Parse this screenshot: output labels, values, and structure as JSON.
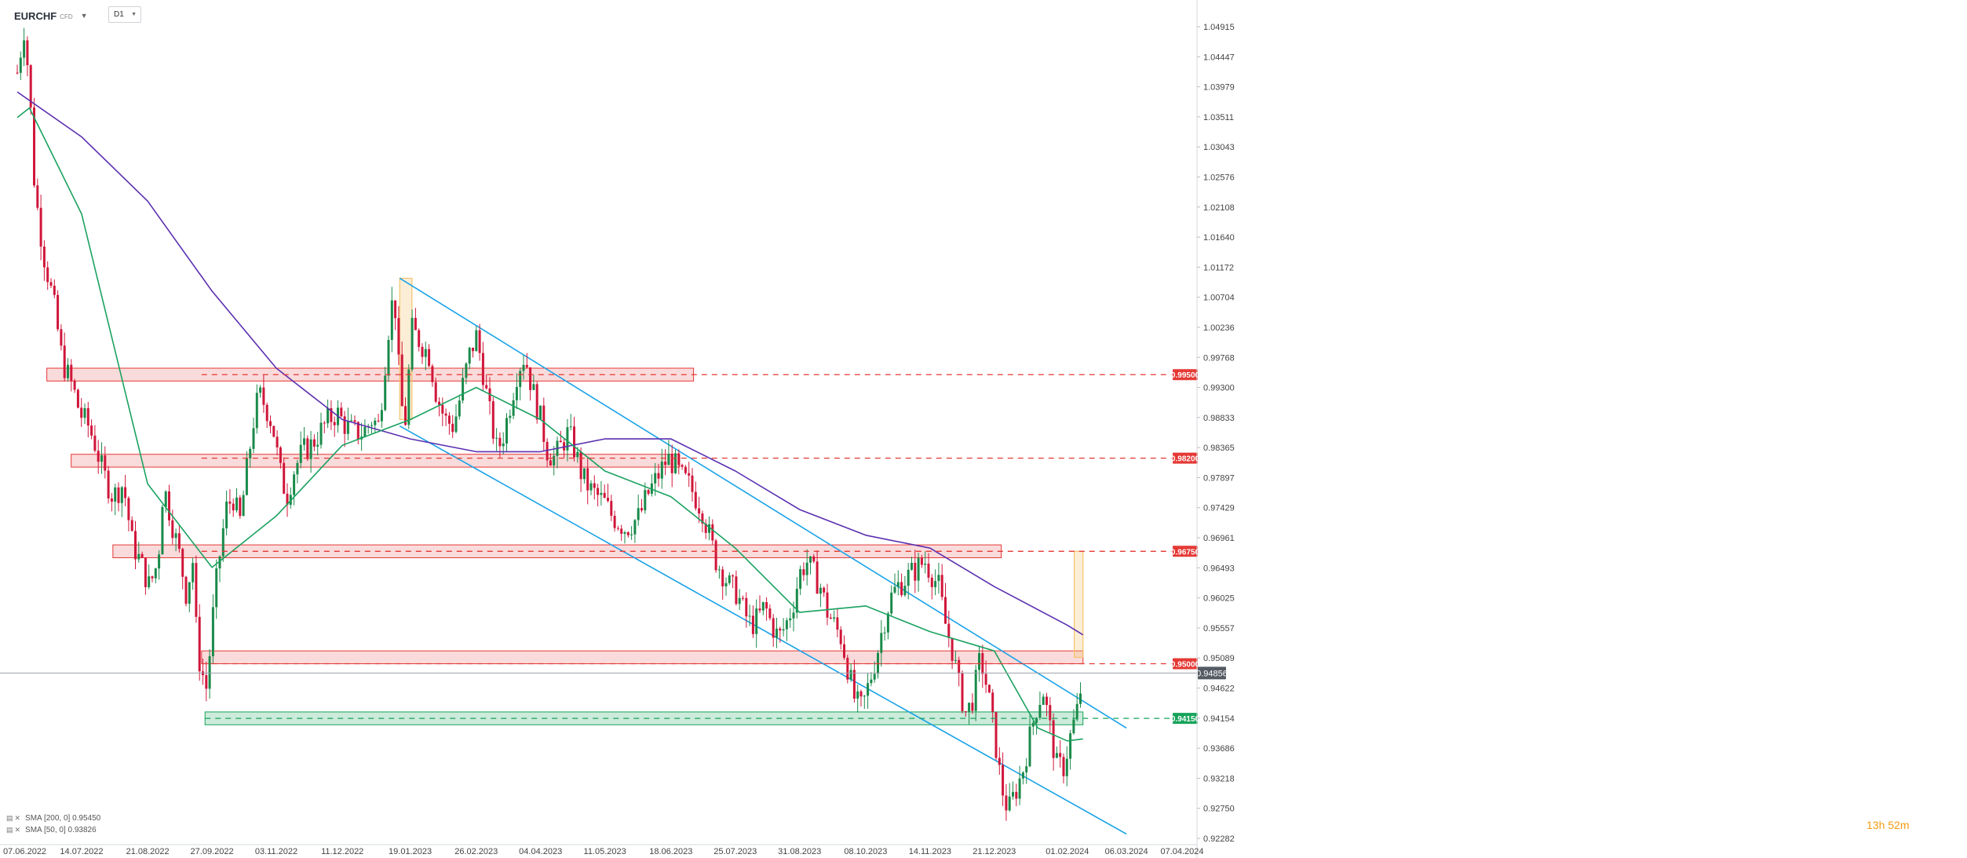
{
  "header": {
    "symbol": "EURCHF",
    "instrument_type": "CFD",
    "timeframe": "D1"
  },
  "legend": [
    {
      "label": "SMA [200, 0] 0.95450",
      "color": "#5b2fb0"
    },
    {
      "label": "SMA [50, 0] 0.93826",
      "color": "#1aa260"
    }
  ],
  "countdown": "13h 52m",
  "colors": {
    "bull": "#1a8a4a",
    "bear": "#d0163a",
    "sma200": "#5b2fb0",
    "sma50": "#1aa260",
    "channel": "#1aa3e8",
    "resistance": "#e53935",
    "support": "#16a35a",
    "highlight": "#f5c26b"
  },
  "chart_data": {
    "type": "candlestick",
    "y_axis": {
      "ticks": [
        "1.04915",
        "1.04447",
        "1.03979",
        "1.03511",
        "1.03043",
        "1.02576",
        "1.02108",
        "1.01640",
        "1.01172",
        "1.00704",
        "1.00236",
        "0.99768",
        "0.99300",
        "0.98833",
        "0.98365",
        "0.97897",
        "0.97429",
        "0.96961",
        "0.96493",
        "0.96025",
        "0.95557",
        "0.95089",
        "0.94622",
        "0.94154",
        "0.93686",
        "0.93218",
        "0.92750",
        "0.92282"
      ],
      "range": [
        0.922,
        1.0531
      ]
    },
    "x_axis": {
      "ticks": [
        "07.06.2022",
        "14.07.2022",
        "21.08.2022",
        "27.09.2022",
        "03.11.2022",
        "11.12.2022",
        "19.01.2023",
        "26.02.2023",
        "04.04.2023",
        "11.05.2023",
        "18.06.2023",
        "25.07.2023",
        "31.08.2023",
        "08.10.2023",
        "14.11.2023",
        "21.12.2023",
        "01.02.2024",
        "06.03.2024",
        "07.04.2024"
      ]
    },
    "current_price": "0.94856",
    "current_price_value": 0.94856,
    "levels": [
      {
        "label": "0.99500",
        "value": 0.995,
        "type": "resistance"
      },
      {
        "label": "0.98200",
        "value": 0.982,
        "type": "resistance"
      },
      {
        "label": "0.96750",
        "value": 0.9675,
        "type": "resistance"
      },
      {
        "label": "0.95000",
        "value": 0.95,
        "type": "resistance"
      },
      {
        "label": "0.94150",
        "value": 0.9415,
        "type": "support"
      }
    ],
    "price_path": [
      [
        "07.06.2022",
        1.042
      ],
      [
        "11.06.2022",
        1.049
      ],
      [
        "14.06.2022",
        1.04
      ],
      [
        "17.06.2022",
        1.024
      ],
      [
        "22.06.2022",
        1.014
      ],
      [
        "28.06.2022",
        1.006
      ],
      [
        "03.07.2022",
        0.997
      ],
      [
        "09.07.2022",
        0.993
      ],
      [
        "13.07.2022",
        0.989
      ],
      [
        "18.07.2022",
        0.987
      ],
      [
        "22.07.2022",
        0.984
      ],
      [
        "26.07.2022",
        0.98
      ],
      [
        "01.08.2022",
        0.976
      ],
      [
        "07.08.2022",
        0.978
      ],
      [
        "12.08.2022",
        0.969
      ],
      [
        "18.08.2022",
        0.965
      ],
      [
        "22.08.2022",
        0.962
      ],
      [
        "27.08.2022",
        0.966
      ],
      [
        "30.08.2022",
        0.978
      ],
      [
        "04.09.2022",
        0.972
      ],
      [
        "09.09.2022",
        0.966
      ],
      [
        "12.09.2022",
        0.961
      ],
      [
        "16.09.2022",
        0.966
      ],
      [
        "18.09.2022",
        0.955
      ],
      [
        "20.09.2022",
        0.95
      ],
      [
        "24.09.2022",
        0.946
      ],
      [
        "27.09.2022",
        0.956
      ],
      [
        "30.09.2022",
        0.964
      ],
      [
        "05.10.2022",
        0.974
      ],
      [
        "09.10.2022",
        0.976
      ],
      [
        "13.10.2022",
        0.972
      ],
      [
        "17.10.2022",
        0.98
      ],
      [
        "21.10.2022",
        0.988
      ],
      [
        "24.10.2022",
        0.992
      ],
      [
        "28.10.2022",
        0.99
      ],
      [
        "01.11.2022",
        0.987
      ],
      [
        "05.11.2022",
        0.98
      ],
      [
        "09.11.2022",
        0.976
      ],
      [
        "13.11.2022",
        0.98
      ],
      [
        "18.11.2022",
        0.983
      ],
      [
        "23.11.2022",
        0.984
      ],
      [
        "28.11.2022",
        0.986
      ],
      [
        "03.12.2022",
        0.988
      ],
      [
        "08.12.2022",
        0.989
      ],
      [
        "13.12.2022",
        0.987
      ],
      [
        "18.12.2022",
        0.986
      ],
      [
        "23.12.2022",
        0.986
      ],
      [
        "28.12.2022",
        0.988
      ],
      [
        "01.01.2023",
        0.987
      ],
      [
        "05.01.2023",
        0.998
      ],
      [
        "08.01.2023",
        1.006
      ],
      [
        "11.01.2023",
        1.005
      ],
      [
        "13.01.2023",
        0.992
      ],
      [
        "16.01.2023",
        0.987
      ],
      [
        "20.01.2023",
        1.002
      ],
      [
        "25.01.2023",
        1.0
      ],
      [
        "30.01.2023",
        0.998
      ],
      [
        "03.02.2023",
        0.992
      ],
      [
        "08.02.2023",
        0.988
      ],
      [
        "13.02.2023",
        0.987
      ],
      [
        "18.02.2023",
        0.993
      ],
      [
        "22.02.2023",
        0.998
      ],
      [
        "26.02.2023",
        1.001
      ],
      [
        "01.03.2023",
        0.997
      ],
      [
        "05.03.2023",
        0.99
      ],
      [
        "10.03.2023",
        0.983
      ],
      [
        "14.03.2023",
        0.986
      ],
      [
        "18.03.2023",
        0.991
      ],
      [
        "22.03.2023",
        0.996
      ],
      [
        "26.03.2023",
        0.998
      ],
      [
        "30.03.2023",
        0.993
      ],
      [
        "04.04.2023",
        0.988
      ],
      [
        "08.04.2023",
        0.983
      ],
      [
        "12.04.2023",
        0.982
      ],
      [
        "16.04.2023",
        0.984
      ],
      [
        "20.04.2023",
        0.986
      ],
      [
        "24.04.2023",
        0.983
      ],
      [
        "28.04.2023",
        0.979
      ],
      [
        "03.05.2023",
        0.977
      ],
      [
        "07.05.2023",
        0.976
      ],
      [
        "11.05.2023",
        0.975
      ],
      [
        "15.05.2023",
        0.973
      ],
      [
        "19.05.2023",
        0.972
      ],
      [
        "23.05.2023",
        0.971
      ],
      [
        "27.05.2023",
        0.972
      ],
      [
        "31.05.2023",
        0.973
      ],
      [
        "04.06.2023",
        0.976
      ],
      [
        "08.06.2023",
        0.978
      ],
      [
        "12.06.2023",
        0.98
      ],
      [
        "16.06.2023",
        0.982
      ],
      [
        "20.06.2023",
        0.981
      ],
      [
        "24.06.2023",
        0.979
      ],
      [
        "28.06.2023",
        0.978
      ],
      [
        "02.07.2023",
        0.976
      ],
      [
        "06.07.2023",
        0.974
      ],
      [
        "10.07.2023",
        0.97
      ],
      [
        "14.07.2023",
        0.966
      ],
      [
        "18.07.2023",
        0.964
      ],
      [
        "22.07.2023",
        0.962
      ],
      [
        "26.07.2023",
        0.961
      ],
      [
        "30.07.2023",
        0.958
      ],
      [
        "03.08.2023",
        0.956
      ],
      [
        "07.08.2023",
        0.957
      ],
      [
        "11.08.2023",
        0.959
      ],
      [
        "15.08.2023",
        0.956
      ],
      [
        "19.08.2023",
        0.954
      ],
      [
        "23.08.2023",
        0.956
      ],
      [
        "27.08.2023",
        0.959
      ],
      [
        "31.08.2023",
        0.964
      ],
      [
        "04.09.2023",
        0.966
      ],
      [
        "08.09.2023",
        0.964
      ],
      [
        "12.09.2023",
        0.962
      ],
      [
        "16.09.2023",
        0.958
      ],
      [
        "20.09.2023",
        0.956
      ],
      [
        "24.09.2023",
        0.954
      ],
      [
        "28.09.2023",
        0.949
      ],
      [
        "02.10.2023",
        0.944
      ],
      [
        "06.10.2023",
        0.943
      ],
      [
        "10.10.2023",
        0.947
      ],
      [
        "14.10.2023",
        0.951
      ],
      [
        "18.10.2023",
        0.956
      ],
      [
        "22.10.2023",
        0.96
      ],
      [
        "26.10.2023",
        0.962
      ],
      [
        "30.10.2023",
        0.963
      ],
      [
        "03.11.2023",
        0.964
      ],
      [
        "07.11.2023",
        0.965
      ],
      [
        "11.11.2023",
        0.966
      ],
      [
        "15.11.2023",
        0.964
      ],
      [
        "19.11.2023",
        0.962
      ],
      [
        "23.11.2023",
        0.956
      ],
      [
        "27.11.2023",
        0.952
      ],
      [
        "01.12.2023",
        0.946
      ],
      [
        "05.12.2023",
        0.942
      ],
      [
        "09.12.2023",
        0.945
      ],
      [
        "13.12.2023",
        0.951
      ],
      [
        "17.12.2023",
        0.946
      ],
      [
        "21.12.2023",
        0.939
      ],
      [
        "25.12.2023",
        0.931
      ],
      [
        "29.12.2023",
        0.927
      ],
      [
        "02.01.2024",
        0.93
      ],
      [
        "06.01.2024",
        0.933
      ],
      [
        "10.01.2024",
        0.938
      ],
      [
        "14.01.2024",
        0.943
      ],
      [
        "18.01.2024",
        0.946
      ],
      [
        "22.01.2024",
        0.94
      ],
      [
        "26.01.2024",
        0.934
      ],
      [
        "30.01.2024",
        0.934
      ],
      [
        "03.02.2024",
        0.939
      ],
      [
        "07.02.2024",
        0.943
      ],
      [
        "10.02.2024",
        0.9486
      ]
    ],
    "sma200": [
      [
        "07.06.2022",
        1.039
      ],
      [
        "14.07.2022",
        1.032
      ],
      [
        "21.08.2022",
        1.022
      ],
      [
        "27.09.2022",
        1.008
      ],
      [
        "03.11.2022",
        0.996
      ],
      [
        "11.12.2022",
        0.988
      ],
      [
        "19.01.2023",
        0.985
      ],
      [
        "26.02.2023",
        0.983
      ],
      [
        "04.04.2023",
        0.983
      ],
      [
        "11.05.2023",
        0.985
      ],
      [
        "18.06.2023",
        0.985
      ],
      [
        "25.07.2023",
        0.98
      ],
      [
        "31.08.2023",
        0.974
      ],
      [
        "08.10.2023",
        0.97
      ],
      [
        "14.11.2023",
        0.968
      ],
      [
        "21.12.2023",
        0.962
      ],
      [
        "01.02.2024",
        0.956
      ],
      [
        "10.02.2024",
        0.9545
      ]
    ],
    "sma50": [
      [
        "07.06.2022",
        1.035
      ],
      [
        "14.06.2022",
        1.0365
      ],
      [
        "14.07.2022",
        1.02
      ],
      [
        "21.08.2022",
        0.978
      ],
      [
        "27.09.2022",
        0.965
      ],
      [
        "03.11.2022",
        0.973
      ],
      [
        "11.12.2022",
        0.984
      ],
      [
        "19.01.2023",
        0.988
      ],
      [
        "26.02.2023",
        0.993
      ],
      [
        "04.04.2023",
        0.988
      ],
      [
        "11.05.2023",
        0.98
      ],
      [
        "18.06.2023",
        0.976
      ],
      [
        "25.07.2023",
        0.968
      ],
      [
        "31.08.2023",
        0.958
      ],
      [
        "08.10.2023",
        0.959
      ],
      [
        "14.11.2023",
        0.955
      ],
      [
        "21.12.2023",
        0.952
      ],
      [
        "15.01.2024",
        0.94
      ],
      [
        "01.02.2024",
        0.938
      ],
      [
        "10.02.2024",
        0.9383
      ]
    ],
    "channel_lines": [
      {
        "from": [
          "13.01.2023",
          1.01
        ],
        "to": [
          "06.03.2024",
          0.94
        ]
      },
      {
        "from": [
          "13.01.2023",
          0.987
        ],
        "to": [
          "06.03.2024",
          0.9235
        ]
      }
    ],
    "zones": [
      {
        "from": "24.06.2022",
        "to": "01.07.2023",
        "low": 0.994,
        "high": 0.996,
        "type": "resistance"
      },
      {
        "from": "08.07.2022",
        "to": "23.06.2023",
        "low": 0.9806,
        "high": 0.9826,
        "type": "resistance"
      },
      {
        "from": "01.08.2022",
        "to": "25.12.2023",
        "low": 0.9665,
        "high": 0.9685,
        "type": "resistance"
      },
      {
        "from": "21.09.2022",
        "to": "10.02.2024",
        "low": 0.95,
        "high": 0.952,
        "type": "resistance"
      },
      {
        "from": "23.09.2022",
        "to": "10.02.2024",
        "low": 0.9405,
        "high": 0.9425,
        "type": "support"
      }
    ],
    "highlight_boxes": [
      {
        "from": "13.01.2023",
        "to": "20.01.2023",
        "low": 0.988,
        "high": 1.01
      },
      {
        "from": "05.02.2024",
        "to": "10.02.2024",
        "low": 0.951,
        "high": 0.9675
      }
    ]
  }
}
